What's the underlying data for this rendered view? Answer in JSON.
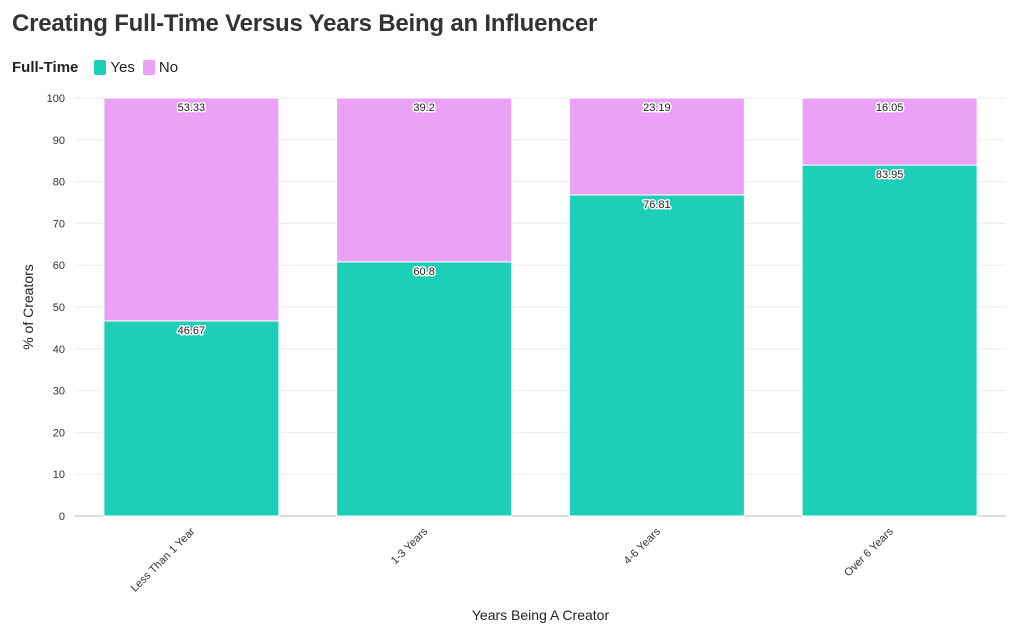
{
  "chart_data": {
    "type": "bar",
    "stacked": true,
    "title": "Creating Full-Time Versus Years Being an Influencer",
    "legend_title": "Full-Time",
    "legend_position": "top-left",
    "categories": [
      "Less Than 1 Year",
      "1-3 Years",
      "4-6 Years",
      "Over 6 Years"
    ],
    "series": [
      {
        "name": "Yes",
        "color": "#1ecfb8",
        "values": [
          46.67,
          60.8,
          76.81,
          83.95
        ]
      },
      {
        "name": "No",
        "color": "#eba2f6",
        "values": [
          53.33,
          39.2,
          23.19,
          16.05
        ]
      }
    ],
    "xlabel": "Years Being A Creator",
    "ylabel": "% of Creators",
    "ylim": [
      0,
      100
    ],
    "yticks": [
      0,
      10,
      20,
      30,
      40,
      50,
      60,
      70,
      80,
      90,
      100
    ],
    "grid": true
  }
}
